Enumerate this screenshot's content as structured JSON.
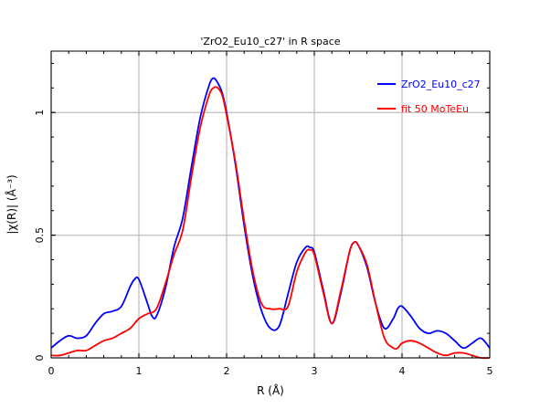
{
  "chart_data": {
    "type": "line",
    "title": "'ZrO2_Eu10_c27' in R space",
    "xlabel": "R (Å)",
    "ylabel": "|χ(R)| (Å⁻³)",
    "xlim": [
      0,
      5
    ],
    "ylim": [
      0,
      1.25
    ],
    "xticks": [
      0,
      1,
      2,
      3,
      4,
      5
    ],
    "xtick_labels": [
      "0",
      "1",
      "2",
      "3",
      "4",
      "5"
    ],
    "yticks": [
      0,
      0.5,
      1
    ],
    "ytick_labels": [
      "0",
      "0.5",
      "1"
    ],
    "grid": true,
    "legend_position": "top-right",
    "series": [
      {
        "name": "ZrO2_Eu10_c27",
        "color": "#0000ff",
        "x": [
          0.0,
          0.1,
          0.2,
          0.3,
          0.4,
          0.5,
          0.6,
          0.7,
          0.8,
          0.9,
          0.95,
          1.0,
          1.1,
          1.15,
          1.2,
          1.3,
          1.4,
          1.5,
          1.6,
          1.7,
          1.8,
          1.85,
          1.9,
          1.95,
          2.0,
          2.1,
          2.2,
          2.3,
          2.4,
          2.5,
          2.6,
          2.7,
          2.8,
          2.9,
          2.95,
          3.0,
          3.1,
          3.2,
          3.3,
          3.4,
          3.45,
          3.5,
          3.6,
          3.7,
          3.8,
          3.9,
          3.95,
          4.0,
          4.1,
          4.2,
          4.3,
          4.4,
          4.5,
          4.6,
          4.7,
          4.8,
          4.9,
          5.0
        ],
        "y": [
          0.04,
          0.07,
          0.09,
          0.08,
          0.09,
          0.14,
          0.18,
          0.19,
          0.21,
          0.29,
          0.32,
          0.32,
          0.22,
          0.17,
          0.17,
          0.28,
          0.45,
          0.57,
          0.78,
          0.98,
          1.11,
          1.14,
          1.12,
          1.08,
          1.0,
          0.79,
          0.54,
          0.33,
          0.19,
          0.12,
          0.13,
          0.26,
          0.39,
          0.45,
          0.45,
          0.43,
          0.28,
          0.14,
          0.26,
          0.43,
          0.47,
          0.46,
          0.37,
          0.22,
          0.12,
          0.16,
          0.2,
          0.21,
          0.17,
          0.12,
          0.1,
          0.11,
          0.1,
          0.07,
          0.04,
          0.06,
          0.08,
          0.04
        ]
      },
      {
        "name": "fit 50 MoTeEu",
        "color": "#ff0000",
        "x": [
          0.0,
          0.1,
          0.2,
          0.3,
          0.4,
          0.5,
          0.6,
          0.7,
          0.8,
          0.9,
          1.0,
          1.1,
          1.2,
          1.3,
          1.4,
          1.5,
          1.6,
          1.7,
          1.8,
          1.85,
          1.9,
          1.95,
          2.0,
          2.1,
          2.2,
          2.3,
          2.4,
          2.5,
          2.6,
          2.7,
          2.8,
          2.9,
          2.95,
          3.0,
          3.1,
          3.2,
          3.3,
          3.4,
          3.45,
          3.5,
          3.6,
          3.7,
          3.8,
          3.9,
          3.95,
          4.0,
          4.1,
          4.2,
          4.3,
          4.4,
          4.5,
          4.6,
          4.7,
          4.8,
          4.9,
          5.0
        ],
        "y": [
          0.01,
          0.01,
          0.02,
          0.03,
          0.03,
          0.05,
          0.07,
          0.08,
          0.1,
          0.12,
          0.16,
          0.18,
          0.2,
          0.3,
          0.42,
          0.52,
          0.74,
          0.94,
          1.07,
          1.1,
          1.1,
          1.07,
          0.99,
          0.8,
          0.56,
          0.35,
          0.22,
          0.2,
          0.2,
          0.21,
          0.35,
          0.43,
          0.44,
          0.42,
          0.27,
          0.14,
          0.27,
          0.43,
          0.47,
          0.46,
          0.38,
          0.22,
          0.08,
          0.04,
          0.04,
          0.06,
          0.07,
          0.06,
          0.04,
          0.02,
          0.01,
          0.02,
          0.02,
          0.01,
          0.0,
          0.0
        ]
      }
    ]
  }
}
